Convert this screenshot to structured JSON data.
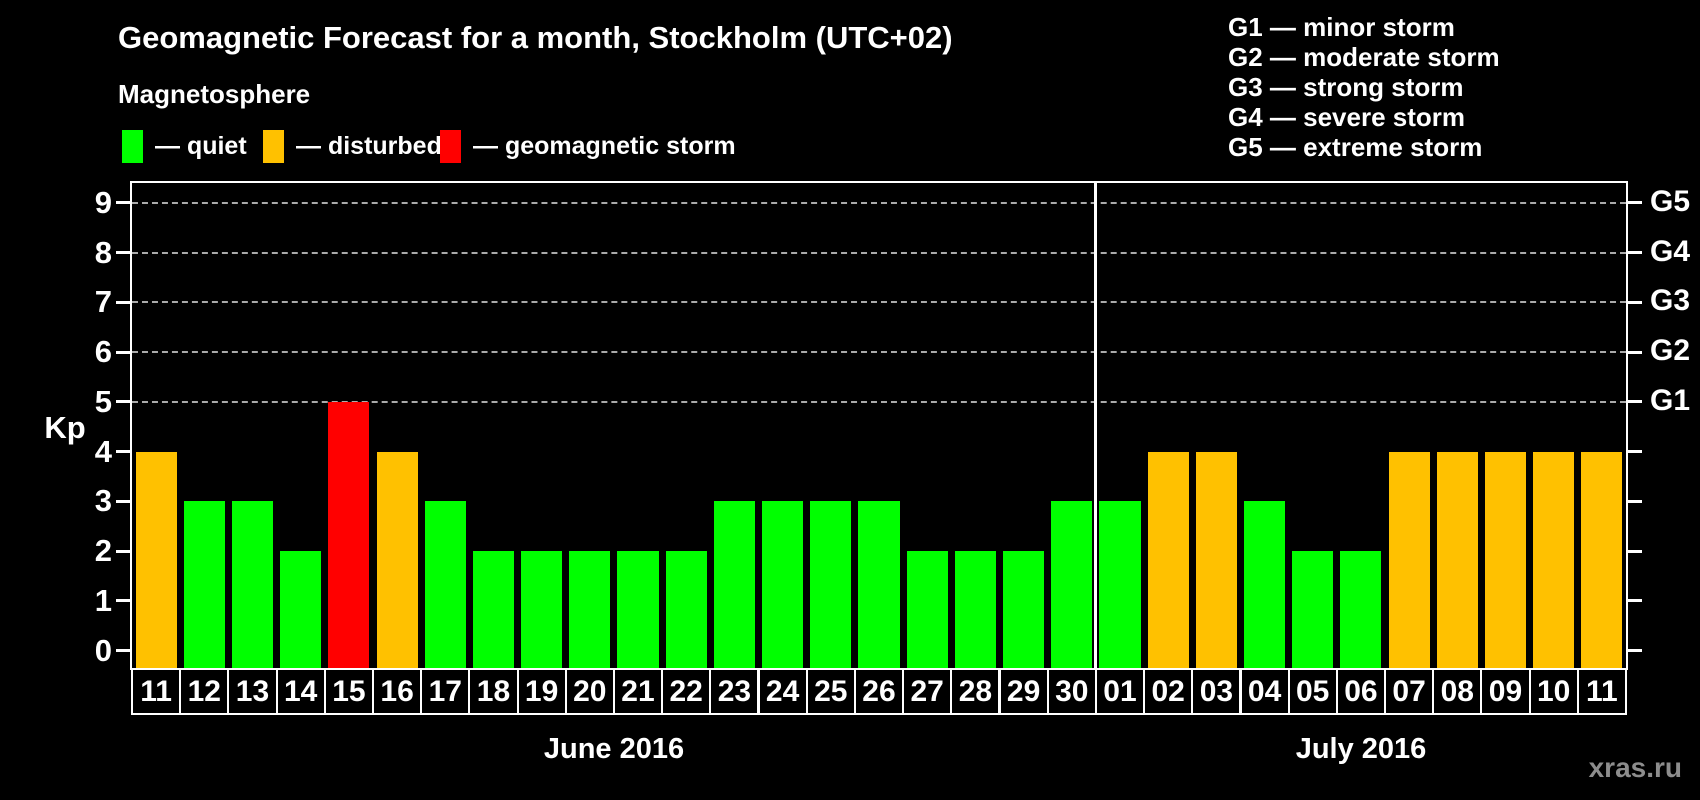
{
  "header": {
    "title": "Geomagnetic Forecast for a month, Stockholm (UTC+02)"
  },
  "legend": {
    "heading": "Magnetosphere",
    "items": [
      {
        "name": "quiet",
        "color": "#00ff00",
        "label": "— quiet"
      },
      {
        "name": "disturbed",
        "color": "#ffc100",
        "label": "— disturbed"
      },
      {
        "name": "storm",
        "color": "#ff0000",
        "label": "— geomagnetic storm"
      }
    ]
  },
  "g_legend": {
    "lines": [
      "G1 — minor storm",
      "G2 — moderate storm",
      "G3 — strong storm",
      "G4 — severe storm",
      "G5 — extreme storm"
    ]
  },
  "watermark": "xras.ru",
  "chart_data": {
    "type": "bar",
    "title": "Geomagnetic Forecast for a month, Stockholm (UTC+02)",
    "ylabel": "Kp",
    "ylim": [
      0,
      9
    ],
    "yticks": [
      0,
      1,
      2,
      3,
      4,
      5,
      6,
      7,
      8,
      9
    ],
    "grid": "horizontal dashed gray lines at Kp 5-9 (storm levels G1-G5)",
    "legend_position": "top",
    "right_axis": [
      {
        "kp": 5,
        "label": "G1"
      },
      {
        "kp": 6,
        "label": "G2"
      },
      {
        "kp": 7,
        "label": "G3"
      },
      {
        "kp": 8,
        "label": "G4"
      },
      {
        "kp": 9,
        "label": "G5"
      }
    ],
    "condition_colors": {
      "quiet": "#00ff00",
      "disturbed": "#ffc100",
      "storm": "#ff0000"
    },
    "months": [
      {
        "label": "June 2016",
        "days": [
          {
            "date": "11",
            "kp": 4,
            "condition": "disturbed"
          },
          {
            "date": "12",
            "kp": 3,
            "condition": "quiet"
          },
          {
            "date": "13",
            "kp": 3,
            "condition": "quiet"
          },
          {
            "date": "14",
            "kp": 2,
            "condition": "quiet"
          },
          {
            "date": "15",
            "kp": 5,
            "condition": "storm"
          },
          {
            "date": "16",
            "kp": 4,
            "condition": "disturbed"
          },
          {
            "date": "17",
            "kp": 3,
            "condition": "quiet"
          },
          {
            "date": "18",
            "kp": 2,
            "condition": "quiet"
          },
          {
            "date": "19",
            "kp": 2,
            "condition": "quiet"
          },
          {
            "date": "20",
            "kp": 2,
            "condition": "quiet"
          },
          {
            "date": "21",
            "kp": 2,
            "condition": "quiet"
          },
          {
            "date": "22",
            "kp": 2,
            "condition": "quiet"
          },
          {
            "date": "23",
            "kp": 3,
            "condition": "quiet"
          },
          {
            "date": "24",
            "kp": 3,
            "condition": "quiet"
          },
          {
            "date": "25",
            "kp": 3,
            "condition": "quiet"
          },
          {
            "date": "26",
            "kp": 3,
            "condition": "quiet"
          },
          {
            "date": "27",
            "kp": 2,
            "condition": "quiet"
          },
          {
            "date": "28",
            "kp": 2,
            "condition": "quiet"
          },
          {
            "date": "29",
            "kp": 2,
            "condition": "quiet"
          },
          {
            "date": "30",
            "kp": 3,
            "condition": "quiet"
          }
        ]
      },
      {
        "label": "July 2016",
        "days": [
          {
            "date": "01",
            "kp": 3,
            "condition": "quiet"
          },
          {
            "date": "02",
            "kp": 4,
            "condition": "disturbed"
          },
          {
            "date": "03",
            "kp": 4,
            "condition": "disturbed"
          },
          {
            "date": "04",
            "kp": 3,
            "condition": "quiet"
          },
          {
            "date": "05",
            "kp": 2,
            "condition": "quiet"
          },
          {
            "date": "06",
            "kp": 2,
            "condition": "quiet"
          },
          {
            "date": "07",
            "kp": 4,
            "condition": "disturbed"
          },
          {
            "date": "08",
            "kp": 4,
            "condition": "disturbed"
          },
          {
            "date": "09",
            "kp": 4,
            "condition": "disturbed"
          },
          {
            "date": "10",
            "kp": 4,
            "condition": "disturbed"
          },
          {
            "date": "11",
            "kp": 4,
            "condition": "disturbed"
          }
        ]
      }
    ]
  }
}
